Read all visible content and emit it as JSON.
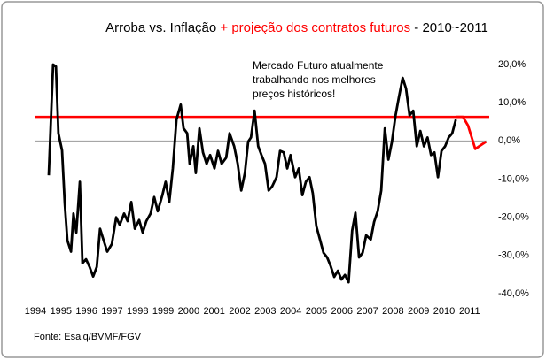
{
  "chart_data": {
    "type": "line",
    "title": "Arroba vs. Inflação",
    "title_highlight": "+ projeção dos contratos futuros",
    "title_suffix": "- 2010~2011",
    "title_highlight_color": "#ff0000",
    "annotation": [
      "Mercado Futuro atualmente",
      "trabalhando nos melhores",
      "preços históricos!"
    ],
    "source": "Fonte: Esalq/BVMF/FGV",
    "xlim": [
      1994,
      2011.7
    ],
    "xticks": [
      1994,
      1995,
      1996,
      1997,
      1998,
      1999,
      2000,
      2001,
      2002,
      2003,
      2004,
      2005,
      2006,
      2007,
      2008,
      2009,
      2010,
      2011
    ],
    "ylim": [
      -40,
      20
    ],
    "yticks": [
      {
        "value": 20,
        "label": "20,0%"
      },
      {
        "value": 10,
        "label": "10,0%"
      },
      {
        "value": 0,
        "label": "0,0%"
      },
      {
        "value": -10,
        "label": "-10,0%"
      },
      {
        "value": -20,
        "label": "-20,0%"
      },
      {
        "value": -30,
        "label": "-30,0%"
      },
      {
        "value": -40,
        "label": "-40,0%"
      }
    ],
    "reference_line": {
      "value": 6.3,
      "color": "#ff0000"
    },
    "series": [
      {
        "color": "#000000",
        "x": [
          1994.52,
          1994.69,
          1994.8,
          1994.9,
          1995.04,
          1995.15,
          1995.25,
          1995.39,
          1995.49,
          1995.6,
          1995.74,
          1995.84,
          1995.98,
          1996.12,
          1996.26,
          1996.4,
          1996.53,
          1996.67,
          1996.81,
          1996.99,
          1997.16,
          1997.3,
          1997.47,
          1997.61,
          1997.75,
          1997.89,
          1998.06,
          1998.2,
          1998.34,
          1998.51,
          1998.65,
          1998.79,
          1998.97,
          1999.1,
          1999.24,
          1999.38,
          1999.52,
          1999.69,
          1999.8,
          1999.94,
          2000.04,
          2000.18,
          2000.28,
          2000.42,
          2000.56,
          2000.7,
          2000.84,
          2001.01,
          2001.15,
          2001.29,
          2001.47,
          2001.6,
          2001.78,
          2001.92,
          2002.06,
          2002.2,
          2002.33,
          2002.44,
          2002.58,
          2002.72,
          2002.85,
          2002.99,
          2003.13,
          2003.27,
          2003.44,
          2003.58,
          2003.72,
          2003.86,
          2003.99,
          2004.17,
          2004.31,
          2004.45,
          2004.59,
          2004.73,
          2004.86,
          2005.0,
          2005.14,
          2005.28,
          2005.42,
          2005.56,
          2005.7,
          2005.84,
          2005.98,
          2006.12,
          2006.26,
          2006.4,
          2006.53,
          2006.67,
          2006.81,
          2006.95,
          2007.13,
          2007.26,
          2007.4,
          2007.54,
          2007.68,
          2007.82,
          2007.96,
          2008.1,
          2008.23,
          2008.38,
          2008.51,
          2008.65,
          2008.79,
          2008.93,
          2009.07,
          2009.21,
          2009.35,
          2009.49,
          2009.62,
          2009.76,
          2009.9,
          2010.04,
          2010.18,
          2010.32,
          2010.46
        ],
        "values": [
          -9,
          20,
          19.5,
          2,
          -2.5,
          -16.5,
          -26,
          -29,
          -19,
          -24,
          -10.7,
          -32,
          -31,
          -33,
          -35.5,
          -33,
          -23,
          -26,
          -29,
          -27,
          -20,
          -22,
          -19,
          -21,
          -16,
          -23,
          -20.7,
          -24,
          -21,
          -19,
          -14.7,
          -18.4,
          -14.2,
          -10.7,
          -16,
          -7.2,
          5.6,
          9.5,
          3.3,
          2,
          -6,
          -1.4,
          -8.4,
          3.3,
          -3,
          -6,
          -3.7,
          -7.2,
          -2.6,
          -6,
          -4.4,
          2,
          -1.4,
          -6,
          -13,
          -8.4,
          -0.2,
          0.9,
          7.9,
          -1.4,
          -3.7,
          -6,
          -13,
          -11.9,
          -9.5,
          -2.6,
          -3,
          -7.2,
          -3.7,
          -9.5,
          -7.2,
          -14.2,
          -10.7,
          -9.5,
          -13.7,
          -22.3,
          -25.8,
          -29.3,
          -30.5,
          -32.8,
          -35.6,
          -34,
          -36.3,
          -35.1,
          -37,
          -23.5,
          -18.8,
          -30.5,
          -29.3,
          -24.7,
          -25.8,
          -21.2,
          -18.4,
          -13,
          3.3,
          -4.9,
          -0.2,
          6.7,
          11.4,
          16.5,
          13.7,
          6.7,
          7.9,
          -1.4,
          2.6,
          -1.4,
          0.9,
          -3.7,
          -3,
          -9.5,
          -2.6,
          -1.4,
          0.9,
          2,
          5.6
        ]
      },
      {
        "color": "#ff0000",
        "x": [
          2010.46,
          2010.74,
          2010.94,
          2011.22,
          2011.64
        ],
        "values": [
          6.3,
          6.3,
          4,
          -2.1,
          -0.2
        ]
      }
    ]
  }
}
